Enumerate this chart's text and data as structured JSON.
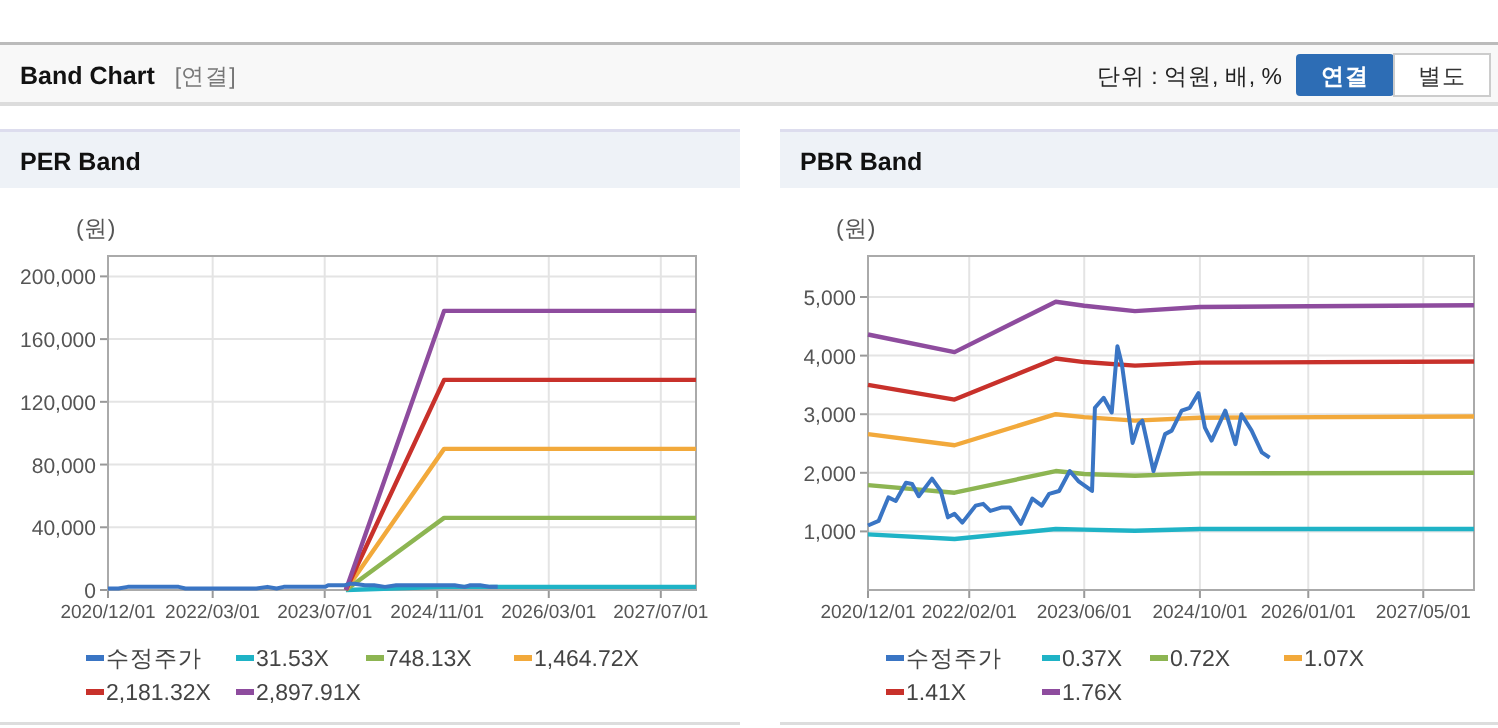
{
  "chart_data": [
    {
      "type": "other",
      "title": "Band Chart",
      "annotations": [
        "[연결]",
        "단위 : 억원, 배, %",
        "연결",
        "별도"
      ]
    },
    {
      "type": "line",
      "title": "PER Band",
      "ylabel": "(원)",
      "xlim": [
        "2020-12-01",
        "2027-12-01"
      ],
      "ylim": [
        0,
        213000
      ],
      "xticks": [
        {
          "value": "2020-12-01",
          "label": "2020/12/01"
        },
        {
          "value": "2022-03-01",
          "label": "2022/03/01"
        },
        {
          "value": "2023-07-01",
          "label": "2023/07/01"
        },
        {
          "value": "2024-11-01",
          "label": "2024/11/01"
        },
        {
          "value": "2026-03-01",
          "label": "2026/03/01"
        },
        {
          "value": "2027-07-01",
          "label": "2027/07/01"
        }
      ],
      "yticks": [
        0,
        {
          "value": 40000,
          "label": "40,000"
        },
        {
          "value": 80000,
          "label": "80,000"
        },
        {
          "value": 120000,
          "label": "120,000"
        },
        {
          "value": 160000,
          "label": "160,000"
        },
        {
          "value": 200000,
          "label": "200,000"
        }
      ],
      "grid": true,
      "legend": "bottom",
      "series": [
        {
          "name": "수정주가",
          "color": "#3a75c4",
          "x": [
            "2020-12-01",
            "2021-01-15",
            "2021-02-25",
            "2021-03-28",
            "2021-05-10",
            "2021-06-05",
            "2021-07-03",
            "2021-08-28",
            "2021-10-04",
            "2021-11-03",
            "2021-12-01",
            "2022-01-03",
            "2022-02-28",
            "2022-04-01",
            "2022-05-01",
            "2022-06-19",
            "2022-07-22",
            "2022-09-07",
            "2022-10-25",
            "2022-12-04",
            "2023-01-04",
            "2023-02-15",
            "2023-04-01",
            "2023-05-07",
            "2023-07-04",
            "2023-07-16",
            "2023-08-22",
            "2023-09-25",
            "2023-10-19",
            "2023-11-07",
            "2023-12-22",
            "2024-01-16",
            "2024-02-01",
            "2024-03-19",
            "2024-05-07",
            "2024-06-04",
            "2024-07-16",
            "2024-08-19",
            "2024-09-25",
            "2024-10-22",
            "2024-11-19",
            "2025-01-16",
            "2025-02-28",
            "2025-03-25",
            "2025-05-07",
            "2025-06-19",
            "2025-07-22"
          ],
          "values": [
            1000,
            1000,
            2000,
            2000,
            2000,
            2000,
            2000,
            2000,
            2000,
            1000,
            1000,
            1000,
            1000,
            1000,
            1000,
            1000,
            1000,
            1000,
            2000,
            1000,
            2000,
            2000,
            2000,
            2000,
            2000,
            3000,
            3000,
            3000,
            4000,
            4000,
            3000,
            3000,
            3000,
            2000,
            3000,
            3000,
            3000,
            3000,
            3000,
            3000,
            3000,
            3000,
            2000,
            3000,
            3000,
            2000,
            2000
          ]
        },
        {
          "name": "31.53X",
          "color": "#1fb3c6",
          "x": [
            "2023-10-01",
            "2024-12-01",
            "2027-12-01"
          ],
          "values": [
            0,
            2000,
            2000
          ]
        },
        {
          "name": "748.13X",
          "color": "#8db552",
          "x": [
            "2023-10-01",
            "2024-12-01",
            "2027-12-01"
          ],
          "values": [
            0,
            46000,
            46000
          ]
        },
        {
          "name": "1,464.72X",
          "color": "#f2a93b",
          "x": [
            "2023-10-01",
            "2024-12-01",
            "2027-12-01"
          ],
          "values": [
            0,
            90000,
            90000
          ]
        },
        {
          "name": "2,181.32X",
          "color": "#c8312b",
          "x": [
            "2023-10-01",
            "2024-12-01",
            "2027-12-01"
          ],
          "values": [
            0,
            134000,
            134000
          ]
        },
        {
          "name": "2,897.91X",
          "color": "#8e4c9e",
          "x": [
            "2023-10-01",
            "2024-12-01",
            "2027-12-01"
          ],
          "values": [
            0,
            178000,
            178000
          ]
        }
      ]
    },
    {
      "type": "line",
      "title": "PBR Band",
      "ylabel": "(원)",
      "xlim": [
        "2020-12-01",
        "2027-12-01"
      ],
      "ylim": [
        0,
        5700
      ],
      "xticks": [
        {
          "value": "2020-12-01",
          "label": "2020/12/01"
        },
        {
          "value": "2022-02-01",
          "label": "2022/02/01"
        },
        {
          "value": "2023-06-01",
          "label": "2023/06/01"
        },
        {
          "value": "2024-10-01",
          "label": "2024/10/01"
        },
        {
          "value": "2026-01-01",
          "label": "2026/01/01"
        },
        {
          "value": "2027-05-01",
          "label": "2027/05/01"
        }
      ],
      "yticks": [
        {
          "value": 1000,
          "label": "1,000"
        },
        {
          "value": 2000,
          "label": "2,000"
        },
        {
          "value": 3000,
          "label": "3,000"
        },
        {
          "value": 4000,
          "label": "4,000"
        },
        {
          "value": 5000,
          "label": "5,000"
        }
      ],
      "grid": true,
      "legend": "bottom",
      "series": [
        {
          "name": "수정주가",
          "color": "#3a75c4",
          "x": [
            "2020-12-01",
            "2021-01-15",
            "2021-02-25",
            "2021-03-28",
            "2021-05-10",
            "2021-06-05",
            "2021-07-03",
            "2021-08-28",
            "2021-10-04",
            "2021-11-03",
            "2021-12-01",
            "2022-01-03",
            "2022-02-28",
            "2022-04-01",
            "2022-05-01",
            "2022-06-19",
            "2022-07-22",
            "2022-09-07",
            "2022-10-25",
            "2022-12-04",
            "2023-01-04",
            "2023-02-15",
            "2023-04-01",
            "2023-05-07",
            "2023-07-04",
            "2023-07-16",
            "2023-08-22",
            "2023-09-25",
            "2023-10-19",
            "2023-11-07",
            "2023-12-22",
            "2024-01-16",
            "2024-02-01",
            "2024-03-19",
            "2024-05-07",
            "2024-06-04",
            "2024-07-16",
            "2024-08-19",
            "2024-09-25",
            "2024-10-22",
            "2024-11-19",
            "2025-01-16",
            "2025-02-28",
            "2025-03-25",
            "2025-05-07",
            "2025-06-19",
            "2025-07-22"
          ],
          "values": [
            1100,
            1180,
            1580,
            1520,
            1830,
            1810,
            1600,
            1900,
            1690,
            1240,
            1300,
            1150,
            1440,
            1470,
            1350,
            1410,
            1410,
            1130,
            1560,
            1440,
            1640,
            1690,
            2030,
            1860,
            1690,
            3110,
            3280,
            3030,
            4160,
            3850,
            2510,
            2830,
            2890,
            2030,
            2660,
            2720,
            3060,
            3110,
            3360,
            2770,
            2550,
            3060,
            2490,
            3000,
            2720,
            2350,
            2260
          ]
        },
        {
          "name": "0.37X",
          "color": "#1fb3c6",
          "x": [
            "2020-12-01",
            "2021-12-01",
            "2023-02-01",
            "2023-06-01",
            "2024-01-01",
            "2024-10-01",
            "2027-12-01"
          ],
          "values": [
            950,
            870,
            1040,
            1030,
            1010,
            1040,
            1040
          ]
        },
        {
          "name": "0.72X",
          "color": "#8db552",
          "x": [
            "2020-12-01",
            "2021-12-01",
            "2023-02-01",
            "2023-06-01",
            "2024-01-01",
            "2024-10-01",
            "2027-12-01"
          ],
          "values": [
            1790,
            1660,
            2030,
            1980,
            1950,
            1990,
            2000
          ]
        },
        {
          "name": "1.07X",
          "color": "#f2a93b",
          "x": [
            "2020-12-01",
            "2021-12-01",
            "2023-02-01",
            "2023-06-01",
            "2024-01-01",
            "2024-10-01",
            "2027-12-01"
          ],
          "values": [
            2660,
            2470,
            3000,
            2950,
            2890,
            2940,
            2960
          ]
        },
        {
          "name": "1.41X",
          "color": "#c8312b",
          "x": [
            "2020-12-01",
            "2021-12-01",
            "2023-02-01",
            "2023-06-01",
            "2024-01-01",
            "2024-10-01",
            "2027-12-01"
          ],
          "values": [
            3500,
            3250,
            3950,
            3890,
            3830,
            3880,
            3900
          ]
        },
        {
          "name": "1.76X",
          "color": "#8e4c9e",
          "x": [
            "2020-12-01",
            "2021-12-01",
            "2023-02-01",
            "2023-06-01",
            "2024-01-01",
            "2024-10-01",
            "2027-12-01"
          ],
          "values": [
            4360,
            4060,
            4920,
            4850,
            4760,
            4830,
            4860
          ]
        }
      ]
    }
  ]
}
